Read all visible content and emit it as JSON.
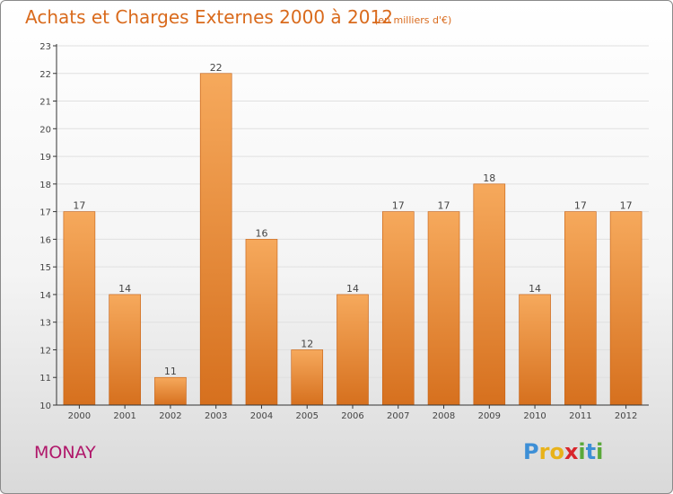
{
  "header": {
    "title": "Achats et Charges Externes 2000 à 2012",
    "subtitle": "(en milliers d'€)"
  },
  "footer": {
    "commune": "MONAY",
    "logo_letters": [
      "P",
      "r",
      "o",
      "x",
      "i",
      "t",
      "i"
    ],
    "logo_colors": [
      "#3d8fd6",
      "#e8b21a",
      "#e8b21a",
      "#d8262c",
      "#59a839",
      "#3d8fd6",
      "#59a839"
    ]
  },
  "colors": {
    "bar_top": "#f6a95c",
    "bar_bottom": "#d6701e",
    "bar_edge": "#c45f13",
    "axis": "#333333",
    "grid": "#e0e0e0",
    "title": "#d96a1c",
    "commune": "#b0176a"
  },
  "chart_data": {
    "type": "bar",
    "title": "Achats et Charges Externes 2000 à 2012",
    "subtitle": "(en milliers d'€)",
    "xlabel": "",
    "ylabel": "",
    "categories": [
      "2000",
      "2001",
      "2002",
      "2003",
      "2004",
      "2005",
      "2006",
      "2007",
      "2008",
      "2009",
      "2010",
      "2011",
      "2012"
    ],
    "values": [
      17,
      14,
      11,
      22,
      16,
      12,
      14,
      17,
      17,
      18,
      14,
      17,
      17
    ],
    "ylim": [
      10,
      23
    ],
    "yticks": [
      10,
      11,
      12,
      13,
      14,
      15,
      16,
      17,
      18,
      19,
      20,
      21,
      22,
      23
    ],
    "grid": true,
    "legend": "none"
  }
}
